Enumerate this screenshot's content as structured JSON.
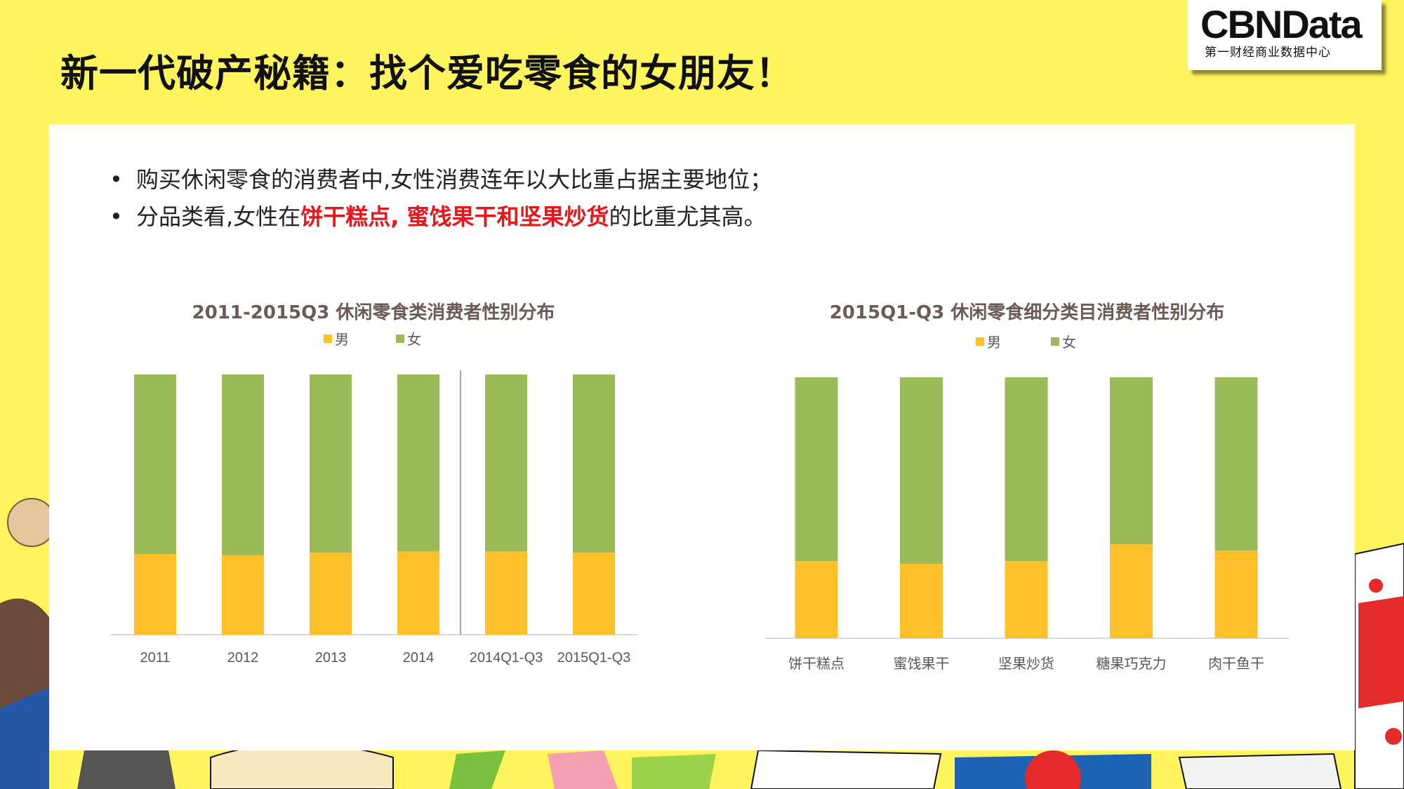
{
  "title": "新一代破产秘籍：找个爱吃零食的女朋友！",
  "logo": {
    "main": "CBNData",
    "sub": "第一财经商业数据中心"
  },
  "bullets": {
    "b1": "购买休闲零食的消费者中,女性消费连年以大比重占据主要地位；",
    "b2_pre": "分品类看,女性在",
    "b2_hl": "饼干糕点, 蜜饯果干和坚果炒货",
    "b2_post": "的比重尤其高。"
  },
  "colors": {
    "male": "#FFC02A",
    "female": "#9BBB59",
    "highlight": "#E8151B",
    "background": "#FEF45E"
  },
  "chart_data": [
    {
      "type": "bar",
      "stacked": true,
      "title": "2011-2015Q3 休闲零食类消费者性别分布",
      "categories": [
        "2011",
        "2012",
        "2013",
        "2014",
        "2014Q1-Q3",
        "2015Q1-Q3"
      ],
      "series": [
        {
          "name": "男",
          "values": [
            31,
            30.5,
            31.5,
            32,
            32,
            31.5
          ]
        },
        {
          "name": "女",
          "values": [
            69,
            69.5,
            68.5,
            68,
            68,
            68.5
          ]
        }
      ],
      "ylim": [
        0,
        100
      ],
      "legend": "top",
      "divider_after": "2014"
    },
    {
      "type": "bar",
      "stacked": true,
      "title": "2015Q1-Q3 休闲零食细分类目消费者性别分布",
      "categories": [
        "饼干糕点",
        "蜜饯果干",
        "坚果炒货",
        "糖果巧克力",
        "肉干鱼干"
      ],
      "series": [
        {
          "name": "男",
          "values": [
            29.5,
            28.5,
            29.5,
            36,
            33.5
          ]
        },
        {
          "name": "女",
          "values": [
            70.5,
            71.5,
            70.5,
            64,
            66.5
          ]
        }
      ],
      "ylim": [
        0,
        100
      ],
      "legend": "top"
    }
  ]
}
